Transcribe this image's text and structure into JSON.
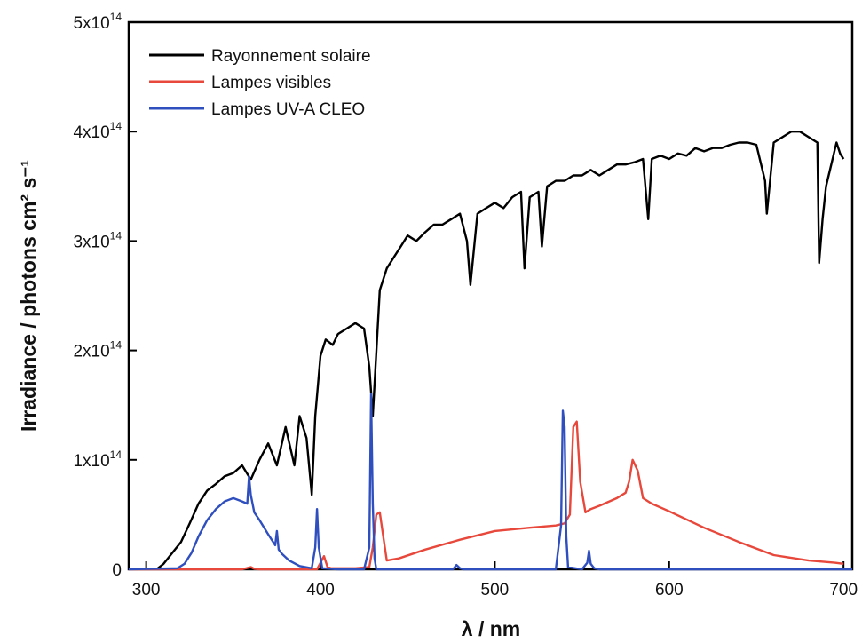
{
  "chart_data": {
    "type": "line",
    "xlabel": "λ / nm",
    "ylabel": "Irradiance / photons cm² s⁻¹",
    "xlim": [
      290,
      705
    ],
    "ylim": [
      0,
      500000000000000.0
    ],
    "x_ticks": [
      300,
      400,
      500,
      600,
      700
    ],
    "y_ticks": [
      {
        "value": 0,
        "base": "0",
        "exp": ""
      },
      {
        "value": 100000000000000.0,
        "base": "1x10",
        "exp": "14"
      },
      {
        "value": 200000000000000.0,
        "base": "2x10",
        "exp": "14"
      },
      {
        "value": 300000000000000.0,
        "base": "3x10",
        "exp": "14"
      },
      {
        "value": 400000000000000.0,
        "base": "4x10",
        "exp": "14"
      },
      {
        "value": 500000000000000.0,
        "base": "5x10",
        "exp": "14"
      }
    ],
    "legend_position": "top-left",
    "series": [
      {
        "name": "Rayonnement solaire",
        "color": "#000000",
        "x": [
          306,
          310,
          315,
          320,
          325,
          330,
          335,
          340,
          345,
          350,
          355,
          360,
          365,
          370,
          375,
          380,
          385,
          388,
          392,
          395,
          397,
          400,
          403,
          407,
          410,
          415,
          420,
          425,
          428,
          430,
          434,
          438,
          442,
          446,
          450,
          455,
          460,
          465,
          470,
          475,
          480,
          484,
          486,
          490,
          495,
          500,
          505,
          510,
          515,
          517,
          520,
          525,
          527,
          530,
          535,
          540,
          545,
          550,
          555,
          560,
          565,
          570,
          575,
          580,
          585,
          588,
          590,
          595,
          600,
          605,
          610,
          615,
          620,
          625,
          630,
          635,
          640,
          645,
          650,
          655,
          656,
          660,
          665,
          670,
          675,
          680,
          685,
          686,
          688,
          690,
          693,
          696,
          698,
          700
        ],
        "y": [
          0.0,
          5000000000000.0,
          15000000000000.0,
          25000000000000.0,
          42000000000000.0,
          60000000000000.0,
          72000000000000.0,
          78000000000000.0,
          85000000000000.0,
          88000000000000.0,
          95000000000000.0,
          82000000000000.0,
          100000000000000.0,
          115000000000000.0,
          95000000000000.0,
          130000000000000.0,
          95000000000000.0,
          140000000000000.0,
          120000000000000.0,
          68000000000000.0,
          140000000000000.0,
          195000000000000.0,
          210000000000000.0,
          205000000000000.0,
          215000000000000.0,
          220000000000000.0,
          225000000000000.0,
          220000000000000.0,
          185000000000000.0,
          140000000000000.0,
          255000000000000.0,
          275000000000000.0,
          285000000000000.0,
          295000000000000.0,
          305000000000000.0,
          300000000000000.0,
          308000000000000.0,
          315000000000000.0,
          315000000000000.0,
          320000000000000.0,
          325000000000000.0,
          300000000000000.0,
          260000000000000.0,
          325000000000000.0,
          330000000000000.0,
          335000000000000.0,
          330000000000000.0,
          340000000000000.0,
          345000000000000.0,
          275000000000000.0,
          340000000000000.0,
          345000000000000.0,
          295000000000000.0,
          350000000000000.0,
          355000000000000.0,
          355000000000000.0,
          360000000000000.0,
          360000000000000.0,
          365000000000000.0,
          360000000000000.0,
          365000000000000.0,
          370000000000000.0,
          370000000000000.0,
          372000000000000.0,
          375000000000000.0,
          320000000000000.0,
          375000000000000.0,
          378000000000000.0,
          375000000000000.0,
          380000000000000.0,
          378000000000000.0,
          385000000000000.0,
          382000000000000.0,
          385000000000000.0,
          385000000000000.0,
          388000000000000.0,
          390000000000000.0,
          390000000000000.0,
          388000000000000.0,
          355000000000000.0,
          325000000000000.0,
          390000000000000.0,
          395000000000000.0,
          400000000000000.0,
          400000000000000.0,
          395000000000000.0,
          390000000000000.0,
          280000000000000.0,
          320000000000000.0,
          350000000000000.0,
          370000000000000.0,
          390000000000000.0,
          380000000000000.0,
          375000000000000.0
        ]
      },
      {
        "name": "Lampes visibles",
        "color": "#e8483b",
        "x": [
          290,
          355,
          360,
          362,
          365,
          380,
          398,
          402,
          404,
          406,
          410,
          420,
          428,
          430,
          432,
          434,
          436,
          438,
          445,
          460,
          480,
          500,
          520,
          535,
          540,
          543,
          545,
          547,
          549,
          552,
          555,
          560,
          570,
          575,
          577,
          579,
          582,
          585,
          590,
          600,
          620,
          640,
          660,
          680,
          695,
          700
        ],
        "y": [
          0,
          0,
          2000000000000.0,
          500000000000.0,
          0,
          0,
          0,
          12000000000000.0,
          2000000000000.0,
          1000000000000.0,
          1000000000000.0,
          1000000000000.0,
          2000000000000.0,
          20000000000000.0,
          50000000000000.0,
          52000000000000.0,
          30000000000000.0,
          8000000000000.0,
          10000000000000.0,
          18000000000000.0,
          27000000000000.0,
          35000000000000.0,
          38000000000000.0,
          40000000000000.0,
          42000000000000.0,
          50000000000000.0,
          130000000000000.0,
          135000000000000.0,
          80000000000000.0,
          52000000000000.0,
          55000000000000.0,
          58000000000000.0,
          65000000000000.0,
          70000000000000.0,
          80000000000000.0,
          100000000000000.0,
          90000000000000.0,
          65000000000000.0,
          60000000000000.0,
          53000000000000.0,
          38000000000000.0,
          25000000000000.0,
          13000000000000.0,
          8000000000000.0,
          6000000000000.0,
          5000000000000.0
        ]
      },
      {
        "name": "Lampes UV-A CLEO",
        "color": "#2f4fbf",
        "x": [
          290,
          318,
          322,
          326,
          330,
          335,
          340,
          345,
          350,
          355,
          358,
          359,
          360,
          362,
          365,
          370,
          374,
          375,
          376,
          378,
          382,
          388,
          395,
          397,
          398,
          399,
          401,
          410,
          425,
          428,
          429,
          430,
          431,
          432,
          440,
          476,
          478,
          480,
          482,
          535,
          538,
          539,
          540,
          541,
          542,
          550,
          553,
          554,
          555,
          557,
          560,
          705
        ],
        "y": [
          0,
          1000000000000.0,
          5000000000000.0,
          15000000000000.0,
          30000000000000.0,
          45000000000000.0,
          55000000000000.0,
          62000000000000.0,
          65000000000000.0,
          62000000000000.0,
          60000000000000.0,
          85000000000000.0,
          68000000000000.0,
          52000000000000.0,
          45000000000000.0,
          32000000000000.0,
          22000000000000.0,
          35000000000000.0,
          18000000000000.0,
          14000000000000.0,
          8000000000000.0,
          3000000000000.0,
          1000000000000.0,
          20000000000000.0,
          55000000000000.0,
          20000000000000.0,
          1000000000000.0,
          0.0,
          0.0,
          20000000000000.0,
          160000000000000.0,
          60000000000000.0,
          10000000000000.0,
          0.0,
          0.0,
          0.0,
          4000000000000.0,
          1000000000000.0,
          0.0,
          0.0,
          40000000000000.0,
          145000000000000.0,
          130000000000000.0,
          30000000000000.0,
          2000000000000.0,
          0.0,
          6000000000000.0,
          17000000000000.0,
          5000000000000.0,
          1000000000000.0,
          0.0,
          0.0
        ]
      }
    ]
  }
}
